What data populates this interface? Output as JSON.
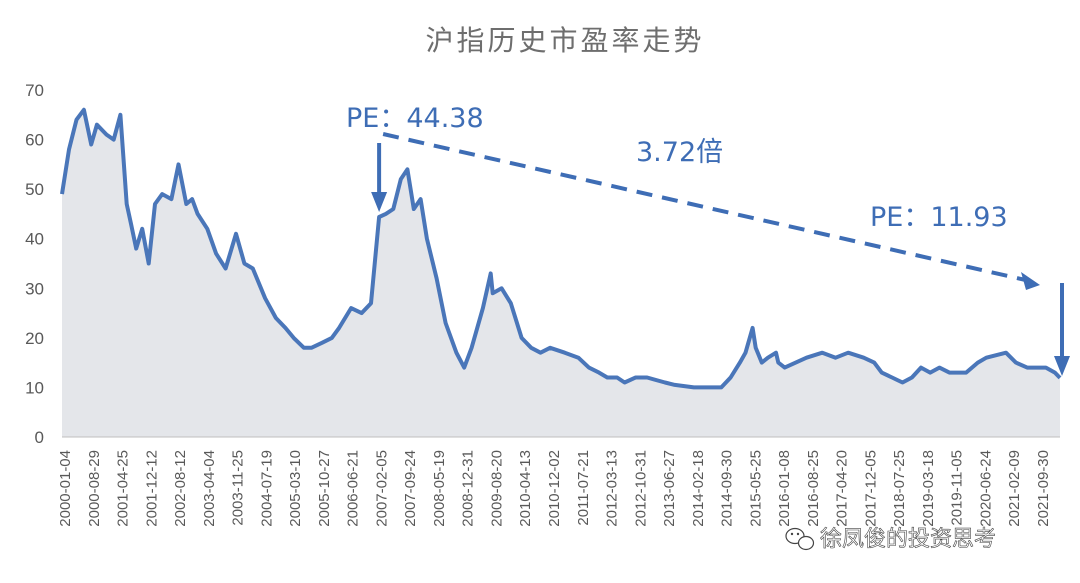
{
  "chart_data": {
    "type": "area",
    "title": "沪指历史市盈率走势",
    "xlabel": "",
    "ylabel": "",
    "ylim": [
      0,
      70
    ],
    "yticks": [
      0,
      10,
      20,
      30,
      40,
      50,
      60,
      70
    ],
    "grid": false,
    "xtick_labels": [
      "2000-01-04",
      "2000-08-29",
      "2001-04-25",
      "2001-12-12",
      "2002-08-12",
      "2003-04-04",
      "2003-11-25",
      "2004-07-19",
      "2005-03-10",
      "2005-10-27",
      "2006-06-21",
      "2007-02-05",
      "2007-09-24",
      "2008-05-19",
      "2008-12-31",
      "2009-08-20",
      "2010-04-13",
      "2010-12-02",
      "2011-07-21",
      "2012-03-13",
      "2012-10-31",
      "2013-06-27",
      "2014-02-18",
      "2014-09-30",
      "2015-05-25",
      "2016-01-08",
      "2016-08-25",
      "2017-04-20",
      "2017-12-05",
      "2018-07-25",
      "2019-03-18",
      "2019-11-05",
      "2020-06-24",
      "2021-02-09",
      "2021-09-30"
    ],
    "series": [
      {
        "x": [
          "2000-01-04",
          "2000-03-01",
          "2000-05-01",
          "2000-07-01",
          "2000-08-29",
          "2000-10-15",
          "2001-01-01",
          "2001-03-01",
          "2001-04-25",
          "2001-06-15",
          "2001-07-20",
          "2001-09-01",
          "2001-10-20",
          "2001-12-12",
          "2002-02-01",
          "2002-04-01",
          "2002-06-15",
          "2002-08-12",
          "2002-10-15",
          "2002-12-01",
          "2003-01-15",
          "2003-04-04",
          "2003-06-15",
          "2003-09-01",
          "2003-11-25",
          "2004-02-01",
          "2004-04-10",
          "2004-07-19",
          "2004-10-15",
          "2005-01-01",
          "2005-03-10",
          "2005-06-01",
          "2005-08-01",
          "2005-10-27",
          "2006-01-15",
          "2006-03-15",
          "2006-06-21",
          "2006-09-15",
          "2006-12-01",
          "2007-02-05",
          "2007-04-01",
          "2007-06-01",
          "2007-08-01",
          "2007-09-24",
          "2007-11-15",
          "2008-01-10",
          "2008-03-01",
          "2008-05-19",
          "2008-08-01",
          "2008-10-28",
          "2008-12-31",
          "2009-03-01",
          "2009-06-01",
          "2009-08-04",
          "2009-08-20",
          "2009-11-01",
          "2010-01-15",
          "2010-04-13",
          "2010-07-01",
          "2010-09-15",
          "2010-12-02",
          "2011-04-01",
          "2011-07-21",
          "2011-10-15",
          "2012-01-05",
          "2012-03-13",
          "2012-06-01",
          "2012-08-01",
          "2012-10-31",
          "2013-02-01",
          "2013-06-27",
          "2013-09-15",
          "2014-02-18",
          "2014-06-01",
          "2014-09-30",
          "2014-12-15",
          "2015-03-01",
          "2015-04-15",
          "2015-06-12",
          "2015-07-08",
          "2015-08-26",
          "2015-10-15",
          "2015-12-20",
          "2016-01-08",
          "2016-02-29",
          "2016-08-25",
          "2017-01-01",
          "2017-04-20",
          "2017-08-01",
          "2017-12-05",
          "2018-03-01",
          "2018-05-01",
          "2018-07-25",
          "2018-10-18",
          "2019-01-03",
          "2019-03-18",
          "2019-06-01",
          "2019-08-15",
          "2019-11-05",
          "2020-03-20",
          "2020-06-24",
          "2020-09-01",
          "2021-02-09",
          "2021-05-01",
          "2021-08-01",
          "2021-09-30",
          "2022-01-01",
          "2022-03-15",
          "2022-04-26"
        ],
        "values": [
          49,
          58,
          64,
          66,
          59,
          63,
          61,
          60,
          65,
          47,
          43,
          38,
          42,
          35,
          47,
          49,
          48,
          55,
          47,
          48,
          45,
          42,
          37,
          34,
          41,
          35,
          34,
          28,
          24,
          22,
          20,
          18,
          18,
          19,
          20,
          22,
          26,
          25,
          27,
          44.38,
          45,
          46,
          52,
          54,
          46,
          48,
          40,
          32,
          23,
          17,
          14,
          18,
          26,
          33,
          29,
          30,
          27,
          20,
          18,
          17,
          18,
          17,
          16,
          14,
          13,
          12,
          12,
          11,
          12,
          12,
          11,
          10.5,
          10,
          10,
          10,
          12,
          15,
          17,
          22,
          18,
          15,
          16,
          17,
          15,
          14,
          16,
          17,
          16,
          17,
          16,
          15,
          13,
          12,
          11,
          12,
          14,
          13,
          14,
          13,
          13,
          15,
          16,
          17,
          15,
          14,
          14,
          14,
          13,
          11.93
        ]
      }
    ],
    "annotations": {
      "pe_start_label": "PE：44.38",
      "ratio_label": "3.72倍",
      "pe_end_label": "PE：11.93",
      "pe_start": {
        "date": "2007-02-05",
        "value": 44.38
      },
      "pe_end": {
        "date": "2022-04-26",
        "value": 11.93
      }
    },
    "colors": {
      "line": "#4a76b9",
      "fill": "#e4e6ea",
      "annotation": "#3e6db5",
      "title": "#6e6e6e",
      "tick": "#595959"
    }
  },
  "watermark": {
    "icon": "wechat-icon",
    "text": "徐凤俊的投资思考"
  }
}
